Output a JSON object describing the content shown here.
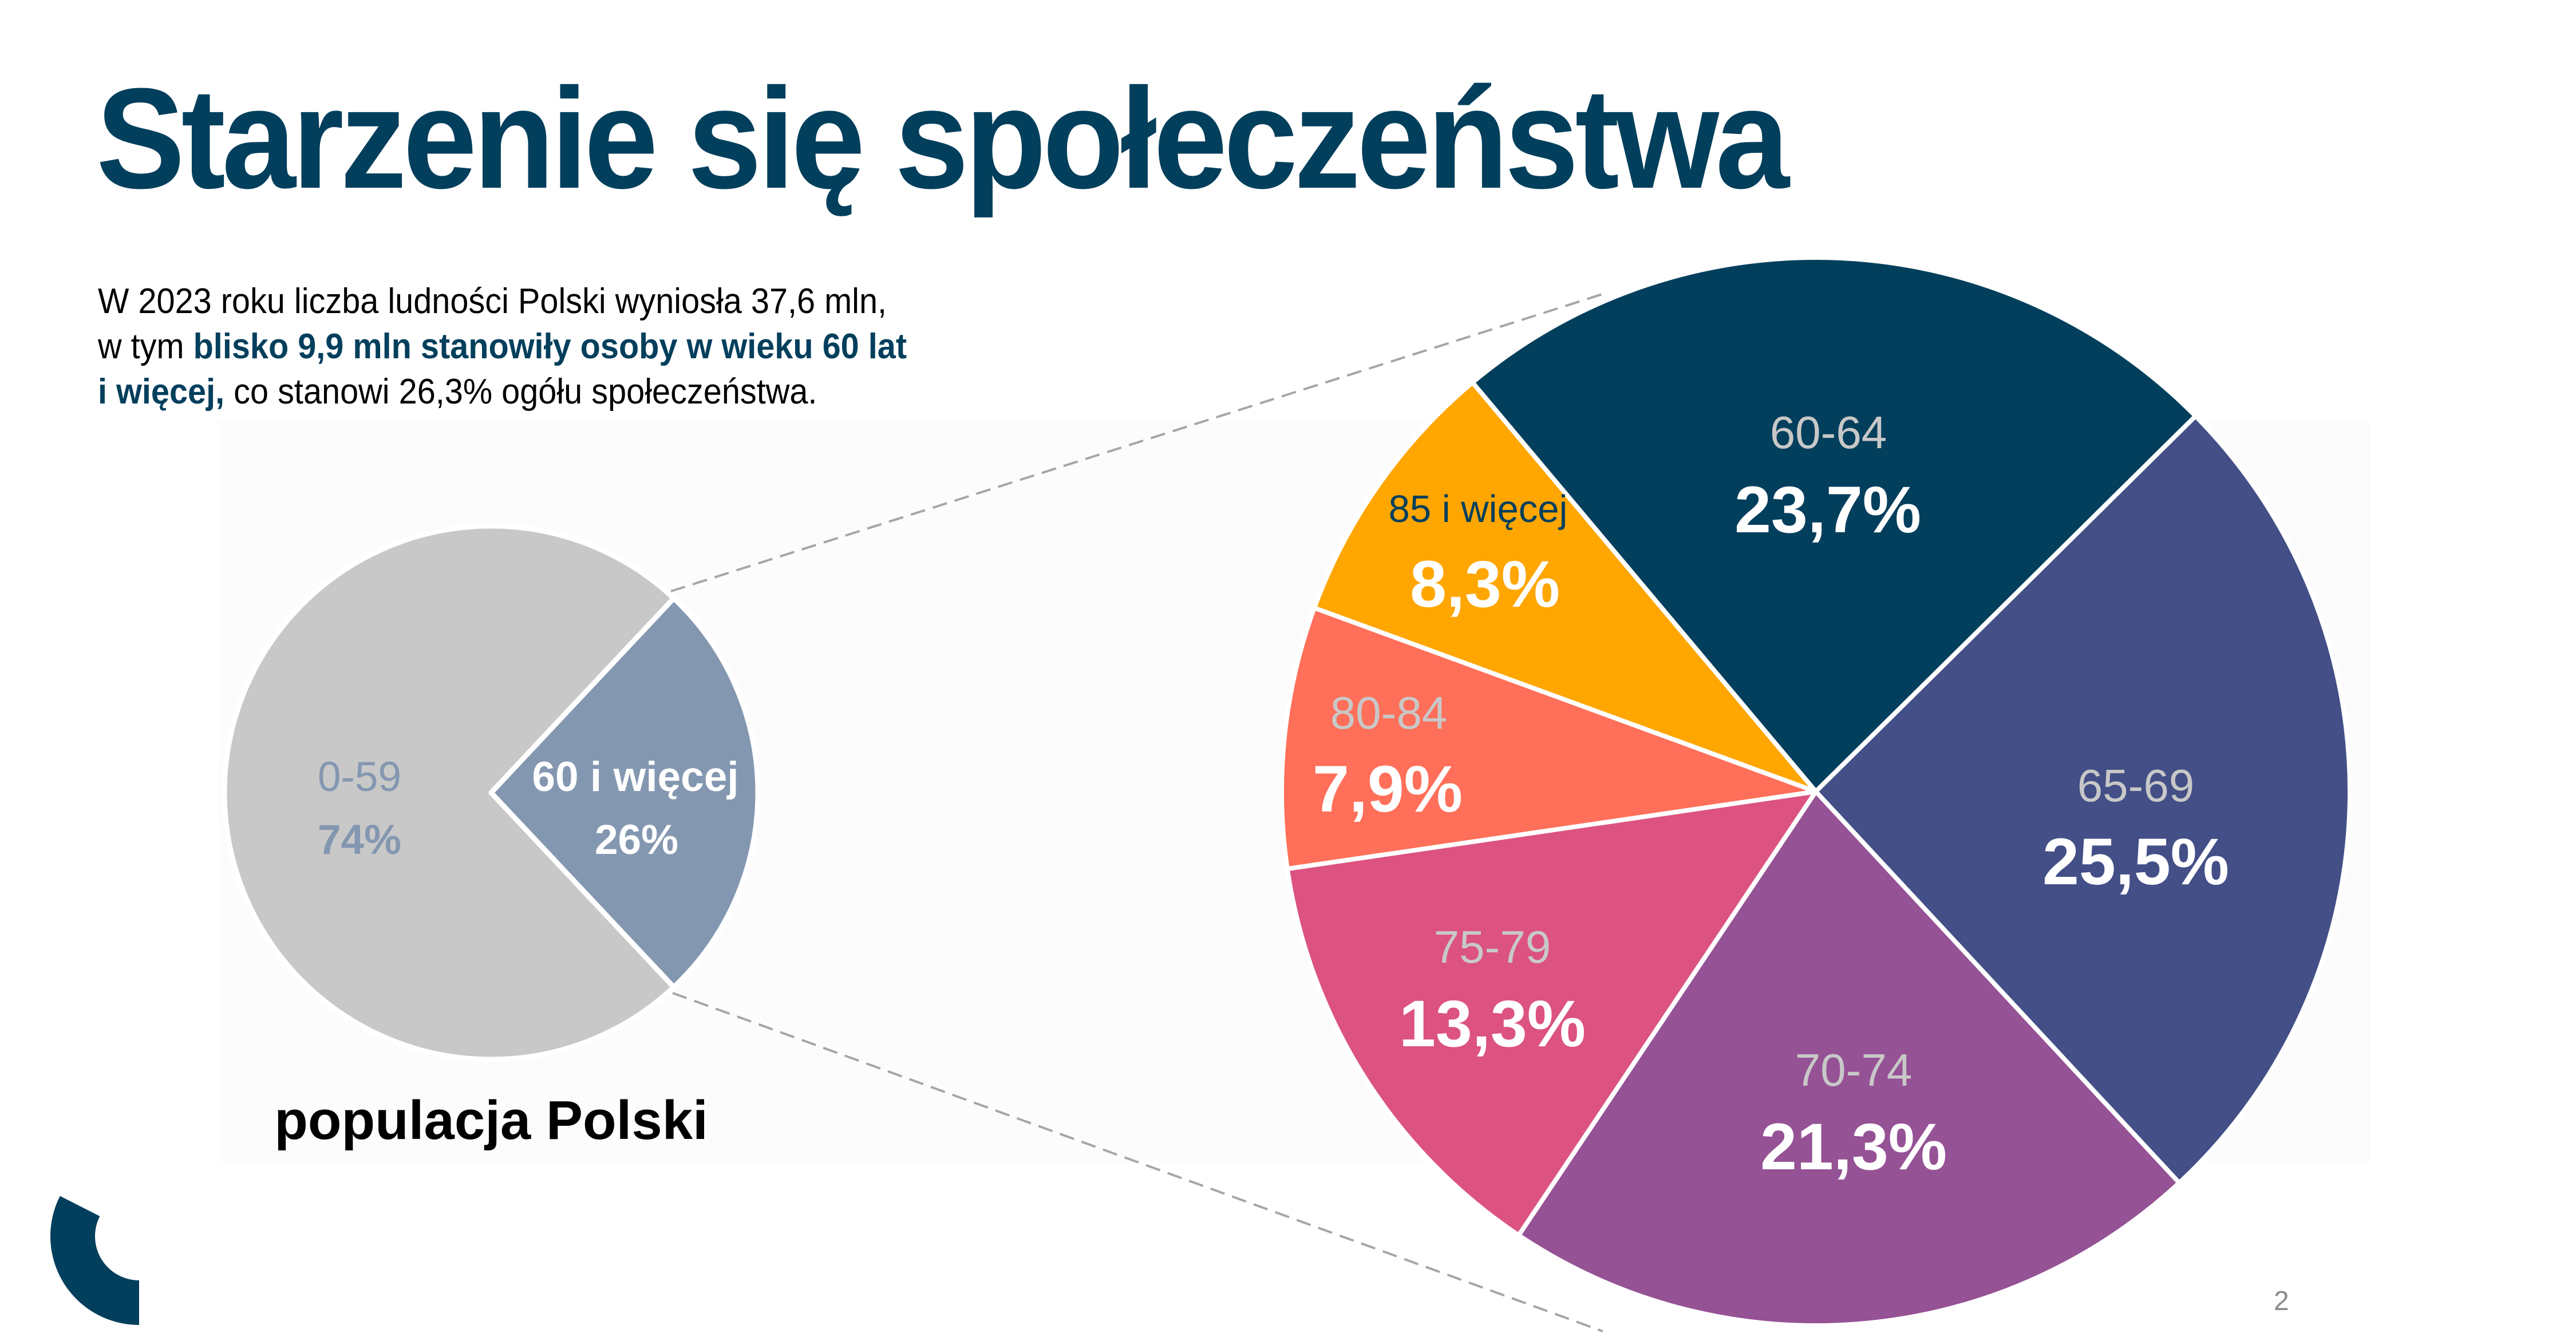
{
  "slide": {
    "title": "Starzenie się społeczeństwa",
    "intro": {
      "line1": "W 2023 roku liczba ludności Polski wyniosła 37,6 mln,",
      "line2_prefix": "w tym ",
      "line2_highlight": "blisko 9,9 mln stanowiły osoby w wieku 60 lat",
      "line3_highlight": "i więcej,",
      "line3_suffix": " co stanowi 26,3% ogółu społeczeństwa."
    },
    "page_number": "2",
    "logo": "brand-arc-logo",
    "colors": {
      "brand": "#023f5c",
      "connector": "#a6a6a6"
    }
  },
  "chart_data": [
    {
      "type": "pie",
      "title": "populacja Polski",
      "categories": [
        "0-59",
        "60 i więcej"
      ],
      "values": [
        74,
        26
      ],
      "labels": [
        "74%",
        "26%"
      ],
      "colors": [
        "#c8c8c8",
        "#8497b0"
      ],
      "label_colors": [
        "#8497b0",
        "#ffffff"
      ],
      "unit": "%"
    },
    {
      "type": "pie",
      "title": "",
      "categories": [
        "60-64",
        "65-69",
        "70-74",
        "75-79",
        "80-84",
        "85 i więcej"
      ],
      "values": [
        23.7,
        25.5,
        21.3,
        13.3,
        7.9,
        8.3
      ],
      "labels": [
        "23,7%",
        "25,5%",
        "21,3%",
        "13,3%",
        "7,9%",
        "8,3%"
      ],
      "colors": [
        "#023f5c",
        "#434f86",
        "#955295",
        "#dc5280",
        "#ff6f59",
        "#ffa600"
      ],
      "unit": "%",
      "note": "breakdown of the 60 i więcej segment"
    }
  ]
}
